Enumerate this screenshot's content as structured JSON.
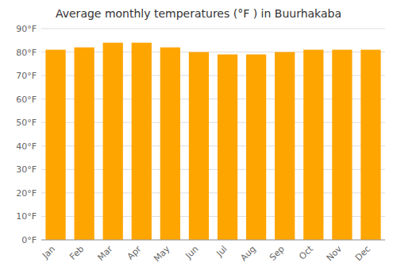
{
  "chart_data": {
    "type": "bar",
    "title": "Average monthly temperatures (°F ) in Buurhakaba",
    "categories": [
      "Jan",
      "Feb",
      "Mar",
      "Apr",
      "May",
      "Jun",
      "Jul",
      "Aug",
      "Sep",
      "Oct",
      "Nov",
      "Dec"
    ],
    "values": [
      81,
      82,
      84,
      84,
      82,
      80,
      79,
      79,
      80,
      81,
      81,
      81
    ],
    "color": "#FFA500",
    "ylim": [
      0,
      90
    ],
    "yticks": [
      {
        "value": 0,
        "label": "0°F"
      },
      {
        "value": 10,
        "label": "10°F"
      },
      {
        "value": 20,
        "label": "20°F"
      },
      {
        "value": 30,
        "label": "30°F"
      },
      {
        "value": 40,
        "label": "40°F"
      },
      {
        "value": 50,
        "label": "50°F"
      },
      {
        "value": 60,
        "label": "60°F"
      },
      {
        "value": 70,
        "label": "70°F"
      },
      {
        "value": 80,
        "label": "80°F"
      },
      {
        "value": 90,
        "label": "90°F"
      }
    ],
    "grid": true
  }
}
